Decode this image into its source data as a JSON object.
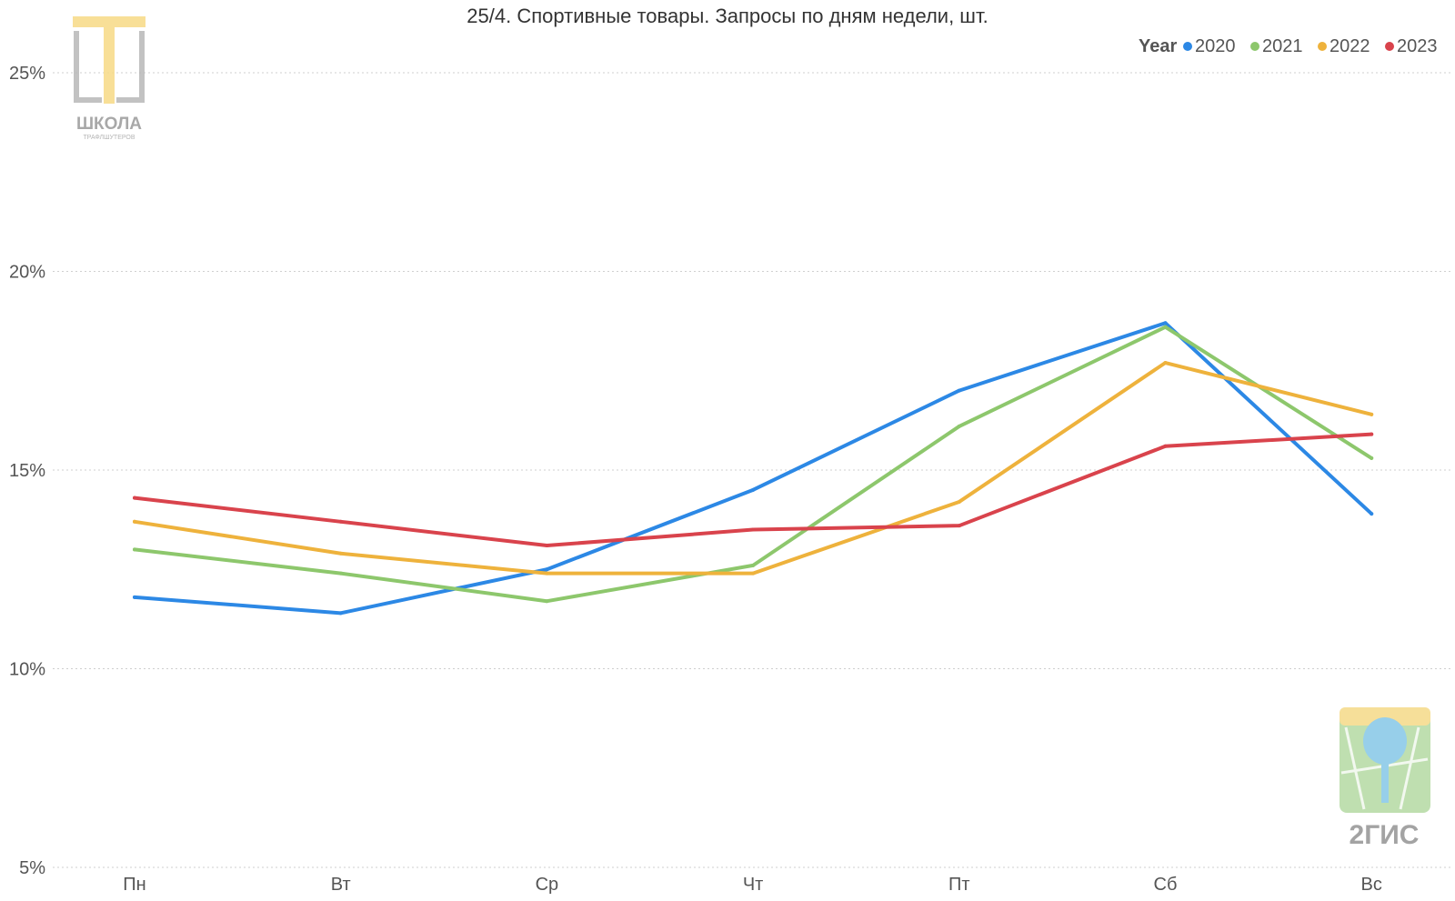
{
  "logos": {
    "school": {
      "line1": "ШКОЛА",
      "line2": "ТРАФЛШУТЕРОВ"
    },
    "brand": {
      "text": "2ГИС"
    }
  },
  "chart_data": {
    "type": "line",
    "title": "25/4. Спортивные товары. Запросы по дням недели, шт.",
    "xlabel": "",
    "ylabel": "",
    "categories": [
      "Пн",
      "Вт",
      "Ср",
      "Чт",
      "Пт",
      "Сб",
      "Вс"
    ],
    "y_ticks": [
      "5%",
      "10%",
      "15%",
      "20%",
      "25%"
    ],
    "ylim": [
      5,
      25
    ],
    "grid": true,
    "legend": {
      "title": "Year",
      "placement": "top-right"
    },
    "series": [
      {
        "name": "2020",
        "color": "#2C88E5",
        "values": [
          11.8,
          11.4,
          12.5,
          14.5,
          17.0,
          18.7,
          13.9
        ]
      },
      {
        "name": "2021",
        "color": "#8DC76C",
        "values": [
          13.0,
          12.4,
          11.7,
          12.6,
          16.1,
          18.6,
          15.3
        ]
      },
      {
        "name": "2022",
        "color": "#EEB23C",
        "values": [
          13.7,
          12.9,
          12.4,
          12.4,
          14.2,
          17.7,
          16.4
        ]
      },
      {
        "name": "2023",
        "color": "#D9434C",
        "values": [
          14.3,
          13.7,
          13.1,
          13.5,
          13.6,
          15.6,
          15.9
        ]
      }
    ]
  }
}
